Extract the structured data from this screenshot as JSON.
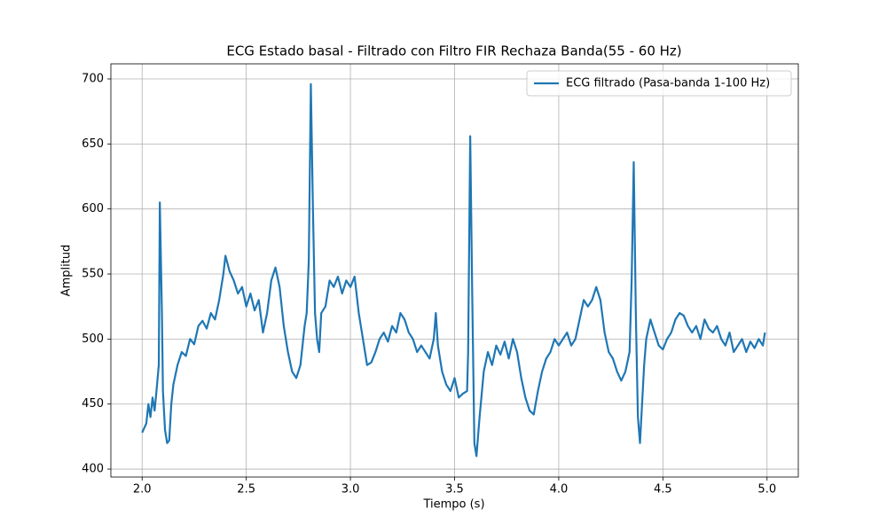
{
  "chart_data": {
    "type": "line",
    "title": "ECG Estado basal - Filtrado con Filtro FIR Rechaza Banda(55 - 60 Hz)",
    "xlabel": "Tiempo (s)",
    "ylabel": "Amplitud",
    "grid": true,
    "legend": "upper right",
    "xlim": [
      1.85,
      5.15
    ],
    "ylim": [
      393.9,
      711.6
    ],
    "xticks": [
      {
        "value": 2,
        "label": "2.0"
      },
      2.5,
      {
        "value": 3,
        "label": "3.0"
      },
      3.5,
      {
        "value": 4,
        "label": "4.0"
      },
      4.5,
      {
        "value": 5,
        "label": "5.0"
      }
    ],
    "yticks": [
      400,
      450,
      500,
      550,
      600,
      650,
      700
    ],
    "x": [
      2.0,
      2.02,
      2.03,
      2.04,
      2.05,
      2.06,
      2.07,
      2.08,
      2.085,
      2.095,
      2.1,
      2.11,
      2.12,
      2.13,
      2.14,
      2.15,
      2.17,
      2.19,
      2.21,
      2.23,
      2.25,
      2.27,
      2.29,
      2.31,
      2.33,
      2.35,
      2.37,
      2.39,
      2.4,
      2.42,
      2.44,
      2.46,
      2.48,
      2.5,
      2.52,
      2.54,
      2.56,
      2.58,
      2.6,
      2.62,
      2.64,
      2.66,
      2.68,
      2.7,
      2.72,
      2.74,
      2.76,
      2.78,
      2.79,
      2.8,
      2.81,
      2.82,
      2.83,
      2.84,
      2.85,
      2.86,
      2.88,
      2.9,
      2.92,
      2.94,
      2.96,
      2.98,
      3.0,
      3.02,
      3.04,
      3.06,
      3.08,
      3.1,
      3.12,
      3.14,
      3.16,
      3.18,
      3.2,
      3.22,
      3.24,
      3.26,
      3.28,
      3.3,
      3.32,
      3.34,
      3.36,
      3.38,
      3.4,
      3.41,
      3.42,
      3.44,
      3.46,
      3.48,
      3.5,
      3.52,
      3.54,
      3.56,
      3.565,
      3.575,
      3.585,
      3.595,
      3.605,
      3.62,
      3.64,
      3.66,
      3.68,
      3.7,
      3.72,
      3.74,
      3.76,
      3.78,
      3.8,
      3.82,
      3.84,
      3.86,
      3.88,
      3.9,
      3.92,
      3.94,
      3.96,
      3.98,
      4.0,
      4.02,
      4.04,
      4.06,
      4.08,
      4.1,
      4.12,
      4.14,
      4.16,
      4.18,
      4.2,
      4.22,
      4.24,
      4.26,
      4.28,
      4.3,
      4.32,
      4.34,
      4.35,
      4.36,
      4.37,
      4.38,
      4.39,
      4.4,
      4.41,
      4.42,
      4.44,
      4.46,
      4.48,
      4.5,
      4.52,
      4.54,
      4.56,
      4.58,
      4.6,
      4.62,
      4.64,
      4.66,
      4.68,
      4.7,
      4.72,
      4.74,
      4.76,
      4.78,
      4.8,
      4.82,
      4.84,
      4.86,
      4.88,
      4.9,
      4.92,
      4.94,
      4.96,
      4.98,
      4.99
    ],
    "series": [
      {
        "name": "ECG filtrado (Pasa-banda 1-100 Hz)",
        "color": "#1f77b4",
        "values": [
          428,
          435,
          450,
          440,
          455,
          445,
          462,
          480,
          605,
          520,
          460,
          430,
          420,
          422,
          450,
          465,
          480,
          490,
          487,
          500,
          496,
          510,
          514,
          508,
          520,
          515,
          530,
          550,
          564,
          552,
          545,
          535,
          540,
          525,
          535,
          522,
          530,
          505,
          520,
          545,
          555,
          540,
          510,
          490,
          475,
          470,
          480,
          510,
          520,
          560,
          696,
          600,
          520,
          500,
          490,
          520,
          525,
          545,
          540,
          548,
          535,
          545,
          540,
          548,
          520,
          500,
          480,
          482,
          490,
          500,
          505,
          498,
          510,
          505,
          520,
          515,
          505,
          500,
          490,
          495,
          490,
          485,
          500,
          520,
          495,
          475,
          465,
          460,
          470,
          455,
          458,
          460,
          490,
          656,
          530,
          420,
          410,
          440,
          475,
          490,
          480,
          495,
          488,
          498,
          485,
          500,
          490,
          470,
          455,
          445,
          442,
          460,
          475,
          485,
          490,
          500,
          495,
          500,
          505,
          495,
          500,
          515,
          530,
          525,
          530,
          540,
          530,
          505,
          490,
          485,
          475,
          468,
          475,
          490,
          545,
          636,
          520,
          440,
          420,
          450,
          480,
          500,
          515,
          505,
          495,
          492,
          500,
          505,
          515,
          520,
          518,
          510,
          505,
          510,
          500,
          515,
          508,
          505,
          510,
          500,
          495,
          505,
          490,
          495,
          500,
          490,
          498,
          493,
          500,
          495,
          505
        ]
      }
    ]
  }
}
